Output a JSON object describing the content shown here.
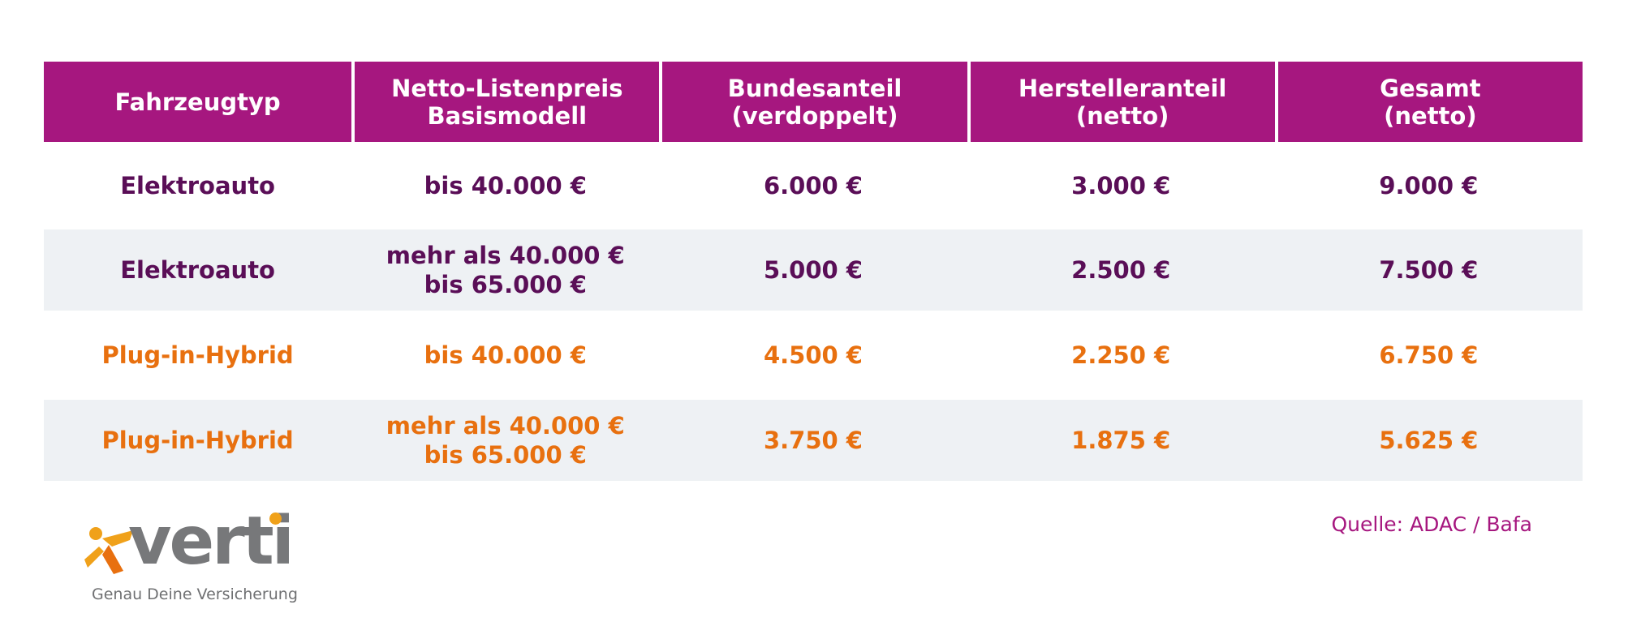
{
  "table": {
    "headers": [
      {
        "line1": "Fahrzeugtyp",
        "line2": ""
      },
      {
        "line1": "Netto-Listenpreis",
        "line2": "Basismodell"
      },
      {
        "line1": "Bundesanteil",
        "line2": "(verdoppelt)"
      },
      {
        "line1": "Herstelleranteil",
        "line2": "(netto)"
      },
      {
        "line1": "Gesamt",
        "line2": "(netto)"
      }
    ],
    "rows": [
      {
        "type": "Elektroauto",
        "price_l1": "bis 40.000 €",
        "price_l2": "",
        "federal": "6.000 €",
        "manufacturer": "3.000 €",
        "total": "9.000 €"
      },
      {
        "type": "Elektroauto",
        "price_l1": "mehr als 40.000 €",
        "price_l2": "bis 65.000 €",
        "federal": "5.000 €",
        "manufacturer": "2.500 €",
        "total": "7.500 €"
      },
      {
        "type": "Plug-in-Hybrid",
        "price_l1": "bis 40.000 €",
        "price_l2": "",
        "federal": "4.500 €",
        "manufacturer": "2.250 €",
        "total": "6.750 €"
      },
      {
        "type": "Plug-in-Hybrid",
        "price_l1": "mehr als 40.000 €",
        "price_l2": "bis 65.000 €",
        "federal": "3.750 €",
        "manufacturer": "1.875 €",
        "total": "5.625 €"
      }
    ]
  },
  "logo": {
    "word": "verti",
    "tagline": "Genau Deine Versicherung"
  },
  "source": "Quelle: ADAC / Bafa",
  "colors": {
    "header_bg": "#a6177f",
    "ev_text": "#5a0e57",
    "phev_text": "#e8700f",
    "alt_row_bg": "#eef1f4"
  }
}
